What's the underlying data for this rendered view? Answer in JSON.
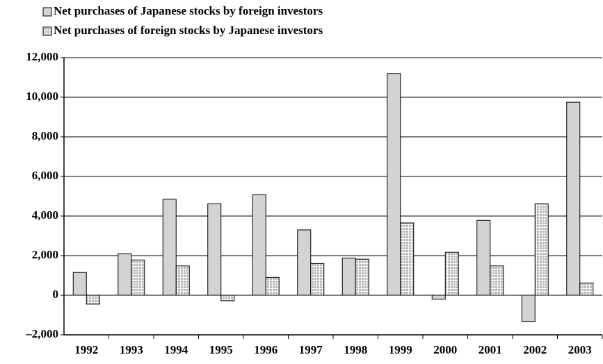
{
  "chart_data": {
    "type": "bar",
    "categories": [
      "1992",
      "1993",
      "1994",
      "1995",
      "1996",
      "1997",
      "1998",
      "1999",
      "2000",
      "2001",
      "2002",
      "2003"
    ],
    "series": [
      {
        "name": "Net purchases of Japanese stocks by foreign investors",
        "color": "#d3d3d3",
        "pattern": "solid",
        "values": [
          1150,
          2100,
          4850,
          4620,
          5080,
          3300,
          1880,
          11200,
          -200,
          3780,
          -1320,
          9750
        ]
      },
      {
        "name": "Net purchases of foreign stocks by Japanese investors",
        "color": "#c8c8c8",
        "pattern": "grid",
        "values": [
          -450,
          1780,
          1480,
          -280,
          900,
          1600,
          1820,
          3650,
          2170,
          1480,
          4620,
          620
        ]
      }
    ],
    "ylim": [
      -2000,
      12000
    ],
    "yticks": [
      {
        "value": -2000,
        "label": "–2,000"
      },
      0,
      {
        "value": 2000,
        "label": "2,000"
      },
      {
        "value": 4000,
        "label": "4,000"
      },
      {
        "value": 6000,
        "label": "6,000"
      },
      {
        "value": 8000,
        "label": "8,000"
      },
      {
        "value": 10000,
        "label": "10,000"
      },
      {
        "value": 12000,
        "label": "12,000"
      }
    ],
    "grid": true,
    "legend": "top-left"
  }
}
